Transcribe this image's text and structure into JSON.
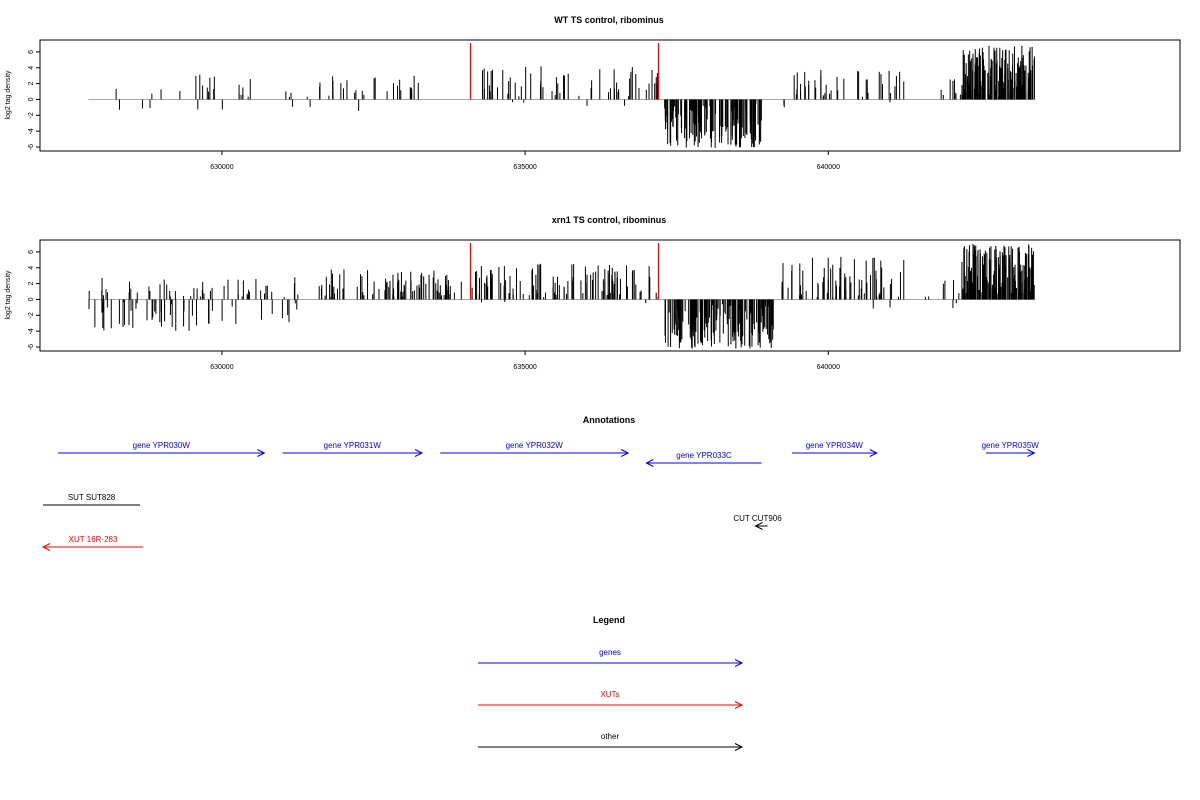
{
  "colors": {
    "gene": "#0000ff",
    "xut": "#ff0000",
    "other": "#000000",
    "marker": "#ff0000",
    "zeroline": "#aaaaaa",
    "bars": "#000000"
  },
  "chart_data": [
    {
      "type": "bar",
      "title": "WT TS control, ribominus",
      "xlabel": "",
      "ylabel": "log2 tag density",
      "xlim": [
        627000,
        645800
      ],
      "ylim": [
        -6.5,
        7.5
      ],
      "xticks": [
        630000,
        635000,
        640000
      ],
      "xtick_labels": [
        "630000",
        "635000",
        "640000"
      ],
      "yticks": [
        -6,
        -4,
        -2,
        0,
        2,
        4,
        6
      ],
      "ytick_labels": [
        "-6",
        "-4",
        "-2",
        "0",
        "2",
        "4",
        "6"
      ],
      "markers_x": [
        634100,
        637200
      ],
      "series": [
        {
          "segments": [
            {
              "start": 628100,
              "end": 629000,
              "count": 6,
              "min": -1.5,
              "max": 1.8,
              "negfrac": 0.4
            },
            {
              "start": 629300,
              "end": 630500,
              "count": 18,
              "min": -1.6,
              "max": 3.4,
              "negfrac": 0.15
            },
            {
              "start": 630500,
              "end": 631500,
              "count": 6,
              "min": -1.4,
              "max": 1.8,
              "negfrac": 0.4
            },
            {
              "start": 631600,
              "end": 633500,
              "count": 26,
              "min": -2.0,
              "max": 3.0,
              "negfrac": 0.06
            },
            {
              "start": 634100,
              "end": 635000,
              "count": 18,
              "min": -0.5,
              "max": 4.0,
              "negfrac": 0.05
            },
            {
              "start": 635000,
              "end": 637200,
              "count": 40,
              "min": -1.0,
              "max": 4.2,
              "negfrac": 0.04
            },
            {
              "start": 637300,
              "end": 638900,
              "count": 150,
              "min": -6.2,
              "max": -0.5,
              "negfrac": 1.0
            },
            {
              "start": 639200,
              "end": 639300,
              "count": 2,
              "min": -1.6,
              "max": -0.6,
              "negfrac": 1.0
            },
            {
              "start": 639400,
              "end": 641300,
              "count": 40,
              "min": -1.0,
              "max": 3.8,
              "negfrac": 0.05
            },
            {
              "start": 641700,
              "end": 642200,
              "count": 8,
              "min": 0.5,
              "max": 2.6,
              "negfrac": 0.0
            },
            {
              "start": 642200,
              "end": 643400,
              "count": 170,
              "min": 0.5,
              "max": 6.8,
              "negfrac": 0.0
            }
          ]
        }
      ]
    },
    {
      "type": "bar",
      "title": "xrn1 TS control, ribominus",
      "xlabel": "",
      "ylabel": "log2 tag density",
      "xlim": [
        627000,
        645800
      ],
      "ylim": [
        -6.5,
        7.5
      ],
      "xticks": [
        630000,
        635000,
        640000
      ],
      "xtick_labels": [
        "630000",
        "635000",
        "640000"
      ],
      "yticks": [
        -6,
        -4,
        -2,
        0,
        2,
        4,
        6
      ],
      "ytick_labels": [
        "-6",
        "-4",
        "-2",
        "0",
        "2",
        "4",
        "6"
      ],
      "markers_x": [
        634100,
        637200
      ],
      "series": [
        {
          "segments": [
            {
              "start": 627800,
              "end": 629600,
              "count": 60,
              "min": -4.0,
              "max": 2.8,
              "negfrac": 0.55
            },
            {
              "start": 629600,
              "end": 631300,
              "count": 40,
              "min": -3.2,
              "max": 3.0,
              "negfrac": 0.35
            },
            {
              "start": 631600,
              "end": 634000,
              "count": 80,
              "min": -0.3,
              "max": 3.8,
              "negfrac": 0.0
            },
            {
              "start": 634100,
              "end": 637200,
              "count": 110,
              "min": -0.5,
              "max": 4.5,
              "negfrac": 0.03
            },
            {
              "start": 637300,
              "end": 639100,
              "count": 170,
              "min": -6.2,
              "max": -0.5,
              "negfrac": 1.0
            },
            {
              "start": 639200,
              "end": 641300,
              "count": 65,
              "min": -1.5,
              "max": 5.4,
              "negfrac": 0.04
            },
            {
              "start": 641600,
              "end": 642200,
              "count": 8,
              "min": -1.2,
              "max": 2.6,
              "negfrac": 0.2
            },
            {
              "start": 642200,
              "end": 643400,
              "count": 170,
              "min": 0.5,
              "max": 7.0,
              "negfrac": 0.0
            }
          ]
        }
      ]
    }
  ],
  "annotations": {
    "title": "Annotations",
    "items": [
      {
        "label": "gene YPR030W",
        "start": 627300,
        "end": 630700,
        "row": 0,
        "strand": "+",
        "kind": "gene"
      },
      {
        "label": "gene YPR031W",
        "start": 631000,
        "end": 633300,
        "row": 0,
        "strand": "+",
        "kind": "gene"
      },
      {
        "label": "gene YPR032W",
        "start": 633600,
        "end": 636700,
        "row": 0,
        "strand": "+",
        "kind": "gene"
      },
      {
        "label": "gene YPR033C",
        "start": 637000,
        "end": 638900,
        "row": 1,
        "strand": "-",
        "kind": "gene"
      },
      {
        "label": "gene YPR034W",
        "start": 639400,
        "end": 640800,
        "row": 0,
        "strand": "+",
        "kind": "gene"
      },
      {
        "label": "gene YPR035W",
        "start": 642600,
        "end": 643400,
        "row": 0,
        "strand": "+",
        "kind": "gene"
      },
      {
        "label": "SUT SUT828",
        "start": 627050,
        "end": 628650,
        "row": 2,
        "strand": ".",
        "kind": "other"
      },
      {
        "label": "CUT CUT906",
        "start": 638800,
        "end": 639000,
        "row": 3,
        "strand": "-",
        "kind": "other"
      },
      {
        "label": "XUT 16R-283",
        "start": 627050,
        "end": 628700,
        "row": 4,
        "strand": "-",
        "kind": "xut"
      }
    ]
  },
  "legend": {
    "title": "Legend",
    "items": [
      {
        "label": "genes",
        "kind": "gene"
      },
      {
        "label": "XUTs",
        "kind": "xut"
      },
      {
        "label": "other",
        "kind": "other"
      }
    ]
  }
}
